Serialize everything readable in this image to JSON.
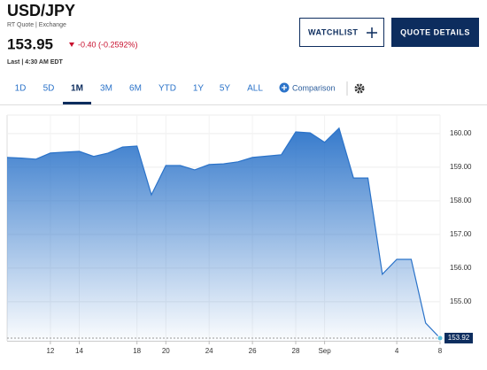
{
  "header": {
    "symbol": "USD/JPY",
    "source": "RT Quote | Exchange",
    "price": "153.95",
    "change": "-0.40 (-0.2592%)",
    "last": "Last | 4:30 AM EDT"
  },
  "buttons": {
    "watchlist": "WATCHLIST",
    "quote_details": "QUOTE DETAILS"
  },
  "tabs": [
    "1D",
    "5D",
    "1M",
    "3M",
    "6M",
    "YTD",
    "1Y",
    "5Y",
    "ALL"
  ],
  "comparison": "Comparison",
  "chart_data": {
    "type": "area",
    "categories": [
      null,
      null,
      null,
      "12",
      null,
      "14",
      null,
      null,
      null,
      "18",
      null,
      "20",
      null,
      null,
      "24",
      null,
      null,
      "26",
      null,
      null,
      "28",
      null,
      "Sep",
      null,
      null,
      null,
      null,
      "4",
      null,
      null,
      "8"
    ],
    "series": [
      {
        "color": "#2b73c9",
        "values": [
          159.29,
          159.27,
          159.24,
          159.42,
          159.45,
          159.47,
          159.32,
          159.42,
          159.6,
          159.63,
          158.18,
          159.05,
          159.05,
          158.92,
          159.08,
          159.1,
          159.16,
          159.29,
          159.33,
          159.37,
          160.05,
          160.02,
          159.74,
          160.16,
          158.68,
          158.68,
          155.82,
          156.26,
          156.26,
          154.37,
          153.92
        ]
      }
    ],
    "ylim": [
      153.84,
      160.55
    ],
    "yticks": [
      {
        "value": 155,
        "label": "155.00"
      },
      {
        "value": 156,
        "label": "156.00"
      },
      {
        "value": 157,
        "label": "157.00"
      },
      {
        "value": 158,
        "label": "158.00"
      },
      {
        "value": 159,
        "label": "159.00"
      },
      {
        "value": 160,
        "label": "160.00"
      }
    ],
    "grid": true,
    "last_price": 153.92
  }
}
